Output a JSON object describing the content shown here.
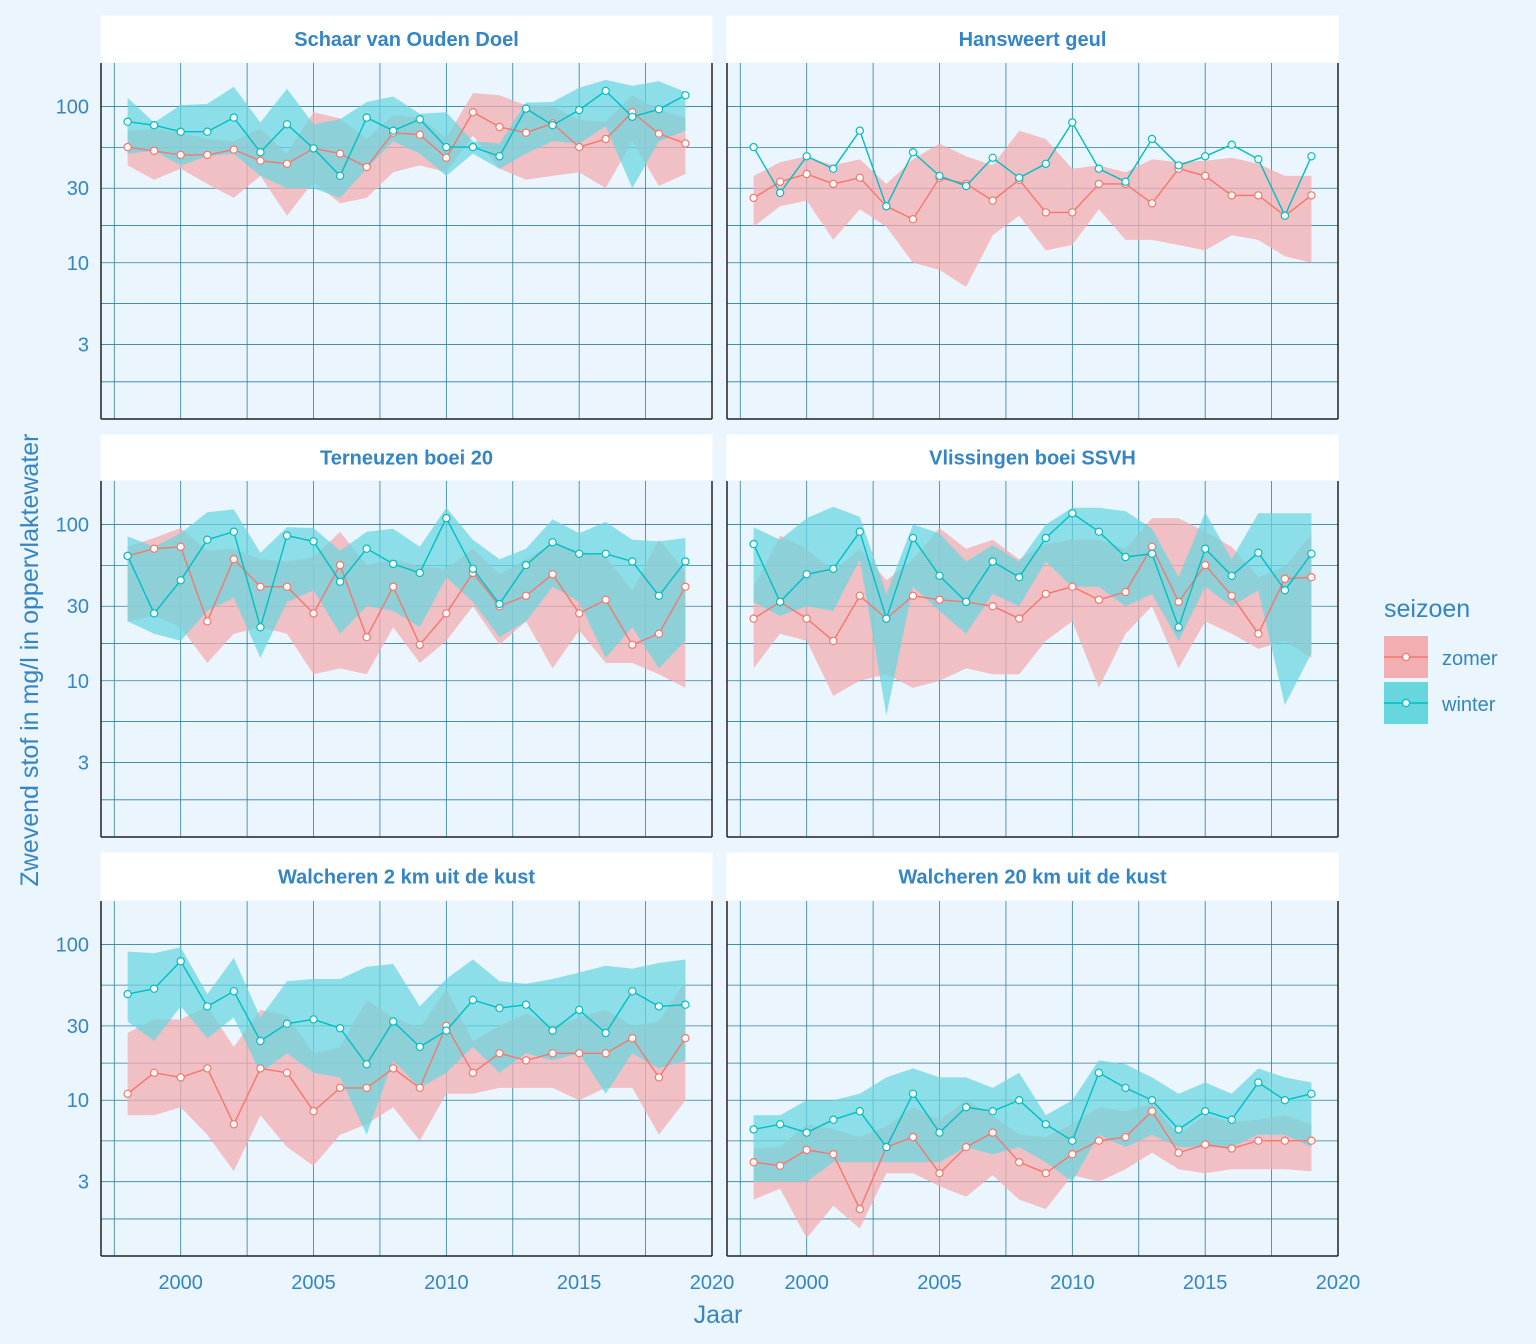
{
  "figure": {
    "xlabel": "Jaar",
    "ylabel": "Zwevend stof in mg/l in oppervlaktewater",
    "x_ticks": [
      2000,
      2005,
      2010,
      2015,
      2020
    ],
    "y_ticks": [
      3,
      10,
      30,
      100
    ],
    "y_scale": "log10",
    "legend": {
      "title": "seizoen",
      "placement": "right",
      "items": [
        {
          "label": "zomer",
          "color": "#F8766D"
        },
        {
          "label": "winter",
          "color": "#00BFC4"
        }
      ]
    },
    "colors": {
      "background": "#EBF5FD",
      "grid": "#2E7EA0",
      "text": "#3385C6",
      "zomer": "#F8766D",
      "winter": "#00BFC4",
      "zomer_ribbon": "#F3AEB2",
      "winter_ribbon": "#67D6DF"
    }
  },
  "chart_data": [
    {
      "type": "line",
      "title": "Schaar van Ouden Doel",
      "xlim": [
        1997,
        2020
      ],
      "ylim": [
        1,
        190
      ],
      "x": [
        1998,
        1999,
        2000,
        2001,
        2002,
        2003,
        2004,
        2005,
        2006,
        2007,
        2008,
        2009,
        2010,
        2011,
        2012,
        2013,
        2014,
        2015,
        2016,
        2017,
        2018,
        2019
      ],
      "series": [
        {
          "name": "zomer",
          "values": [
            55,
            52,
            49,
            49,
            53,
            45,
            43,
            54,
            50,
            41,
            68,
            66,
            47,
            92,
            74,
            68,
            78,
            55,
            62,
            92,
            67,
            58
          ],
          "lower": [
            42,
            34,
            40,
            32,
            26,
            36,
            20,
            33,
            24,
            26,
            38,
            42,
            38,
            65,
            40,
            34,
            36,
            38,
            30,
            60,
            31,
            37
          ],
          "upper": [
            70,
            72,
            68,
            62,
            60,
            72,
            50,
            92,
            84,
            62,
            88,
            85,
            63,
            122,
            118,
            102,
            100,
            82,
            80,
            118,
            95,
            85
          ]
        },
        {
          "name": "winter",
          "values": [
            80,
            76,
            69,
            69,
            85,
            51,
            77,
            54,
            36,
            85,
            70,
            83,
            55,
            55,
            48,
            97,
            76,
            95,
            126,
            86,
            96,
            118
          ],
          "lower": [
            50,
            52,
            42,
            48,
            50,
            36,
            30,
            30,
            26,
            40,
            60,
            50,
            36,
            50,
            40,
            50,
            60,
            58,
            75,
            30,
            60,
            70
          ],
          "upper": [
            114,
            79,
            102,
            104,
            134,
            79,
            130,
            77,
            83,
            107,
            116,
            90,
            92,
            60,
            58,
            106,
            107,
            132,
            148,
            136,
            145,
            124
          ]
        }
      ]
    },
    {
      "type": "line",
      "title": "Hansweert geul",
      "xlim": [
        1997,
        2020
      ],
      "ylim": [
        1,
        190
      ],
      "x": [
        1998,
        1999,
        2000,
        2001,
        2002,
        2003,
        2004,
        2005,
        2006,
        2007,
        2008,
        2009,
        2010,
        2011,
        2012,
        2013,
        2014,
        2015,
        2016,
        2017,
        2018,
        2019
      ],
      "series": [
        {
          "name": "zomer",
          "values": [
            26,
            33,
            37,
            32,
            35,
            23,
            19,
            35,
            32,
            25,
            34,
            21,
            21,
            32,
            32,
            24,
            40,
            36,
            27,
            27,
            20,
            27
          ],
          "lower": [
            17,
            23,
            25,
            14,
            22,
            17,
            10,
            9,
            7,
            15,
            20,
            12,
            13,
            22,
            14,
            14,
            13,
            12,
            15,
            14,
            11,
            10
          ],
          "upper": [
            36,
            44,
            48,
            42,
            46,
            32,
            46,
            58,
            48,
            42,
            70,
            62,
            40,
            42,
            38,
            46,
            44,
            45,
            47,
            43,
            36,
            36
          ]
        },
        {
          "name": "winter",
          "values": [
            55,
            28,
            48,
            40,
            70,
            23,
            51,
            36,
            31,
            47,
            35,
            43,
            79,
            40,
            33,
            62,
            42,
            48,
            57,
            46,
            20,
            48
          ]
        }
      ]
    },
    {
      "type": "line",
      "title": "Terneuzen boei 20",
      "xlim": [
        1997,
        2020
      ],
      "ylim": [
        1,
        190
      ],
      "x": [
        1998,
        1999,
        2000,
        2001,
        2002,
        2003,
        2004,
        2005,
        2006,
        2007,
        2008,
        2009,
        2010,
        2011,
        2012,
        2013,
        2014,
        2015,
        2016,
        2017,
        2018,
        2019
      ],
      "series": [
        {
          "name": "zomer",
          "values": [
            63,
            70,
            72,
            24,
            60,
            40,
            40,
            27,
            55,
            19,
            40,
            17,
            27,
            49,
            30,
            35,
            48,
            27,
            33,
            17,
            20,
            40
          ],
          "lower": [
            24,
            26,
            22,
            13,
            20,
            22,
            20,
            11,
            12,
            11,
            22,
            13,
            18,
            30,
            17,
            24,
            12,
            21,
            13,
            13,
            11,
            9
          ],
          "upper": [
            72,
            82,
            95,
            68,
            70,
            60,
            58,
            62,
            90,
            55,
            60,
            54,
            52,
            70,
            48,
            60,
            75,
            68,
            62,
            38,
            80,
            50
          ]
        },
        {
          "name": "winter",
          "values": [
            63,
            27,
            44,
            80,
            90,
            22,
            85,
            78,
            43,
            70,
            56,
            49,
            110,
            52,
            31,
            55,
            77,
            65,
            65,
            58,
            35,
            58
          ],
          "lower": [
            24,
            20,
            18,
            28,
            34,
            14,
            32,
            38,
            20,
            30,
            28,
            22,
            46,
            32,
            19,
            24,
            40,
            32,
            14,
            22,
            12,
            18
          ],
          "upper": [
            84,
            72,
            88,
            120,
            125,
            66,
            96,
            95,
            68,
            90,
            94,
            72,
            128,
            80,
            60,
            70,
            108,
            88,
            104,
            80,
            78,
            82
          ]
        }
      ]
    },
    {
      "type": "line",
      "title": "Vlissingen boei SSVH",
      "xlim": [
        1997,
        2020
      ],
      "ylim": [
        1,
        190
      ],
      "x": [
        1998,
        1999,
        2000,
        2001,
        2002,
        2003,
        2004,
        2005,
        2006,
        2007,
        2008,
        2009,
        2010,
        2011,
        2012,
        2013,
        2014,
        2015,
        2016,
        2017,
        2018,
        2019
      ],
      "series": [
        {
          "name": "zomer",
          "values": [
            25,
            32,
            25,
            18,
            35,
            25,
            35,
            33,
            32,
            30,
            25,
            36,
            40,
            33,
            37,
            72,
            32,
            55,
            35,
            20,
            45,
            46
          ],
          "lower": [
            12,
            20,
            18,
            8,
            10,
            11,
            9,
            10,
            12,
            11,
            11,
            18,
            24,
            9,
            20,
            30,
            12,
            24,
            20,
            16,
            18,
            14
          ],
          "upper": [
            40,
            85,
            70,
            50,
            70,
            44,
            60,
            95,
            70,
            80,
            60,
            75,
            80,
            80,
            70,
            110,
            110,
            90,
            72,
            46,
            54,
            86
          ],
          "visible_points": [
            25,
            32,
            25,
            18,
            35,
            25,
            35,
            33,
            32,
            30,
            25,
            36,
            40,
            33,
            37,
            72,
            32,
            55,
            35,
            20,
            45,
            46
          ]
        },
        {
          "name": "winter",
          "values": [
            75,
            32,
            48,
            52,
            90,
            25,
            82,
            47,
            32,
            58,
            46,
            82,
            118,
            90,
            62,
            65,
            22,
            70,
            47,
            66,
            38,
            65
          ],
          "lower": [
            32,
            26,
            30,
            28,
            60,
            6,
            40,
            28,
            20,
            36,
            30,
            58,
            40,
            40,
            30,
            36,
            18,
            40,
            30,
            38,
            7,
            15
          ],
          "upper": [
            96,
            80,
            110,
            130,
            112,
            36,
            100,
            88,
            58,
            74,
            58,
            100,
            128,
            128,
            122,
            94,
            46,
            120,
            60,
            118,
            118,
            118
          ]
        }
      ]
    },
    {
      "type": "line",
      "title": "Walcheren 2 km uit de kust",
      "xlim": [
        1997,
        2020
      ],
      "ylim": [
        1,
        190
      ],
      "x": [
        1998,
        1999,
        2000,
        2001,
        2002,
        2003,
        2004,
        2005,
        2006,
        2007,
        2008,
        2009,
        2010,
        2011,
        2012,
        2013,
        2014,
        2015,
        2016,
        2017,
        2018,
        2019
      ],
      "series": [
        {
          "name": "zomer",
          "values": [
            11,
            15,
            14,
            16,
            7,
            16,
            15,
            8.5,
            12,
            12,
            16,
            12,
            30,
            15,
            20,
            18,
            20,
            20,
            20,
            25,
            14,
            25
          ],
          "lower": [
            8,
            8,
            9,
            6,
            3.5,
            8,
            5,
            3.8,
            6,
            7,
            9,
            5.5,
            11,
            11,
            12,
            12,
            12,
            10,
            12,
            12,
            6,
            10
          ],
          "upper": [
            27,
            33,
            33,
            40,
            22,
            38,
            35,
            20,
            22,
            44,
            34,
            29,
            52,
            24,
            30,
            36,
            30,
            34,
            38,
            30,
            32,
            58
          ]
        },
        {
          "name": "winter",
          "values": [
            48,
            52,
            78,
            40,
            50,
            24,
            31,
            33,
            29,
            17,
            32,
            22,
            28,
            44,
            39,
            41,
            28,
            38,
            27,
            50,
            40,
            41
          ],
          "lower": [
            32,
            24,
            40,
            25,
            34,
            15,
            20,
            15,
            14,
            6,
            18,
            12,
            15,
            22,
            15,
            20,
            18,
            20,
            11,
            20,
            16,
            18
          ],
          "upper": [
            90,
            88,
            96,
            48,
            82,
            34,
            58,
            60,
            60,
            72,
            75,
            40,
            60,
            80,
            58,
            56,
            60,
            66,
            73,
            70,
            76,
            80
          ]
        }
      ]
    },
    {
      "type": "line",
      "title": "Walcheren 20 km uit de kust",
      "xlim": [
        1997,
        2020
      ],
      "ylim": [
        1,
        190
      ],
      "x": [
        1998,
        1999,
        2000,
        2001,
        2002,
        2003,
        2004,
        2005,
        2006,
        2007,
        2008,
        2009,
        2010,
        2011,
        2012,
        2013,
        2014,
        2015,
        2016,
        2017,
        2018,
        2019
      ],
      "series": [
        {
          "name": "zomer",
          "values": [
            4,
            3.8,
            4.8,
            4.5,
            2,
            5,
            5.8,
            3.4,
            5,
            6.2,
            4,
            3.4,
            4.5,
            5.5,
            5.8,
            8.5,
            4.6,
            5.2,
            4.9,
            5.5,
            5.5,
            5.5
          ],
          "lower": [
            2.3,
            2.7,
            1.3,
            2.1,
            1.5,
            3.4,
            3.4,
            2.8,
            2.4,
            3.3,
            2.3,
            2,
            3.3,
            3,
            3.6,
            4.6,
            3.6,
            3.4,
            3.6,
            3.6,
            3.6,
            3.5
          ],
          "upper": [
            4.9,
            5,
            7,
            6.5,
            5.8,
            6.8,
            9,
            7.5,
            10,
            8,
            6,
            5.8,
            7,
            9,
            8.5,
            9.5,
            6,
            8,
            7.2,
            7.5,
            8,
            7
          ]
        },
        {
          "name": "winter",
          "values": [
            6.5,
            7,
            6.2,
            7.5,
            8.5,
            5,
            11,
            6.2,
            9,
            8.5,
            10,
            7,
            5.5,
            15,
            12,
            10,
            6.5,
            8.5,
            7.5,
            13,
            10,
            11
          ],
          "lower": [
            3,
            3,
            3,
            4,
            4,
            4,
            4,
            4,
            5,
            4.5,
            5,
            4,
            3,
            6,
            5,
            6,
            5,
            5,
            5,
            6,
            6,
            5
          ],
          "upper": [
            8,
            8,
            10,
            10,
            11,
            14,
            16,
            14,
            14,
            12,
            15,
            8,
            10,
            18,
            17,
            14,
            11,
            13,
            11,
            16,
            14,
            13
          ]
        }
      ]
    }
  ]
}
